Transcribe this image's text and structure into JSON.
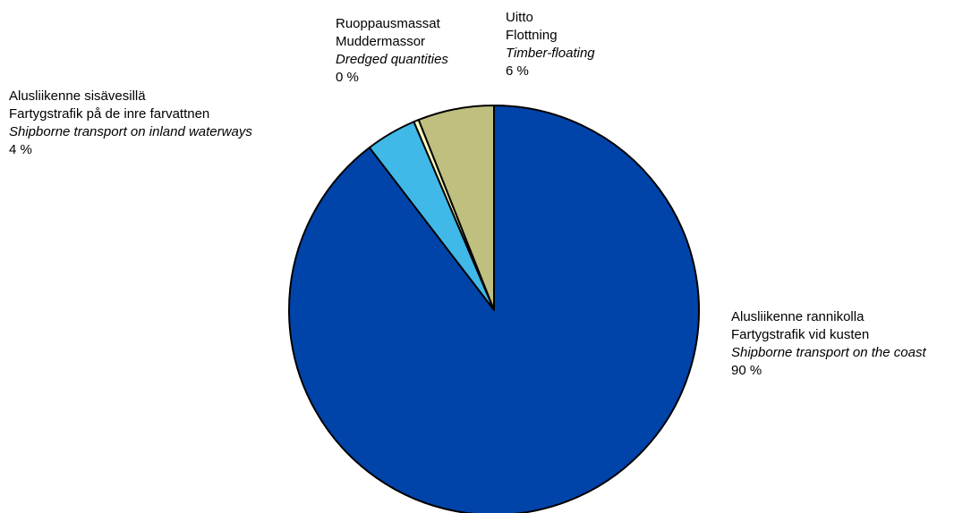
{
  "chart_data": {
    "type": "pie",
    "start_angle": "12 o'clock",
    "direction": "clockwise",
    "slices": [
      {
        "fi": "Alusliikenne rannikolla",
        "sv": "Fartygstrafik vid kusten",
        "en": "Shipborne transport on the coast",
        "pct_label": "90 %",
        "value": 89.6,
        "color": "#0044AA"
      },
      {
        "fi": "Alusliikenne sisävesillä",
        "sv": "Fartygstrafik på de inre farvattnen",
        "en": "Shipborne transport on inland waterways",
        "pct_label": "4 %",
        "value": 4.0,
        "color": "#40B8E8"
      },
      {
        "fi": "Ruoppausmassat",
        "sv": "Muddermassor",
        "en": "Dredged quantities",
        "pct_label": "0 %",
        "value": 0.4,
        "color": "#FFFFC0"
      },
      {
        "fi": "Uitto",
        "sv": "Flottning",
        "en": "Timber-floating",
        "pct_label": "6 %",
        "value": 6.0,
        "color": "#BFBF80"
      }
    ]
  }
}
